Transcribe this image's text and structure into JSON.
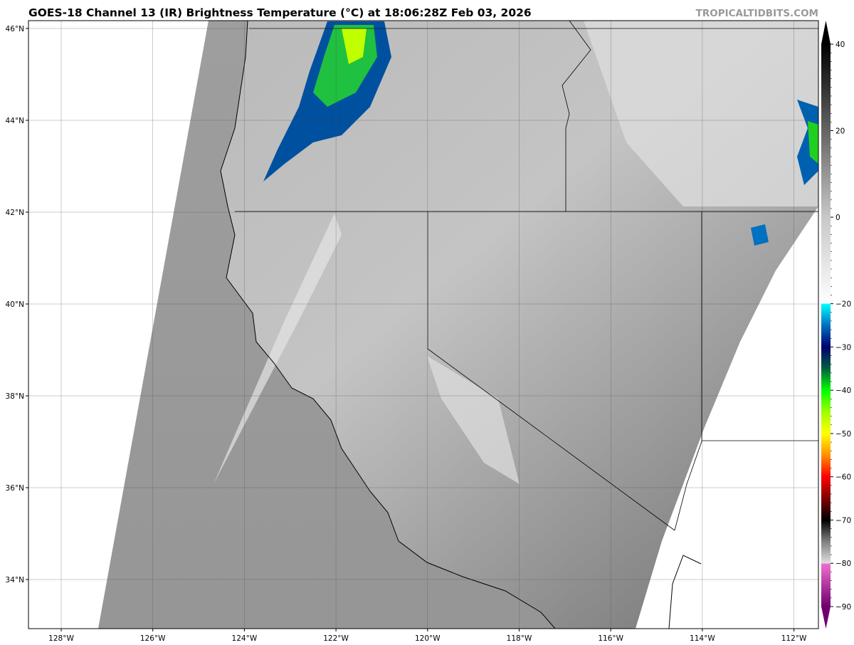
{
  "header": {
    "title": "GOES-18 Channel 13 (IR) Brightness Temperature (°C) at 18:06:28Z Feb 03, 2026",
    "watermark": "TROPICALTIDBITS.COM"
  },
  "map": {
    "longitude_labels": [
      "128°W",
      "126°W",
      "124°W",
      "122°W",
      "120°W",
      "118°W",
      "116°W",
      "114°W",
      "112°W"
    ],
    "latitude_labels": [
      "46°N",
      "44°N",
      "42°N",
      "40°N",
      "38°N",
      "36°N",
      "34°N"
    ],
    "longitudes": [
      -128,
      -126,
      -124,
      -122,
      -120,
      -118,
      -116,
      -114,
      -112
    ],
    "latitudes": [
      46,
      44,
      42,
      40,
      38,
      36,
      34
    ]
  },
  "colorbar": {
    "ticks": [
      "40",
      "20",
      "0",
      "−20",
      "−30",
      "−40",
      "−50",
      "−60",
      "−70",
      "−80",
      "−90"
    ],
    "tick_values": [
      40,
      20,
      0,
      -20,
      -30,
      -40,
      -50,
      -60,
      -70,
      -80,
      -90
    ],
    "range": [
      -90,
      40
    ],
    "colors": {
      "40": "#000000",
      "0": "#c8c8c8",
      "-20": "#ffffff",
      "-20.01": "#00ffff",
      "-25": "#0070c0",
      "-30": "#000070",
      "-35": "#006040",
      "-40": "#00ff00",
      "-45": "#a0ff00",
      "-50": "#ffff00",
      "-55": "#ff9000",
      "-60": "#ff0000",
      "-65": "#800000",
      "-70": "#000000",
      "-75": "#808080",
      "-80": "#e0e0e0",
      "-80.01": "#f070d0",
      "-90": "#700070"
    }
  }
}
